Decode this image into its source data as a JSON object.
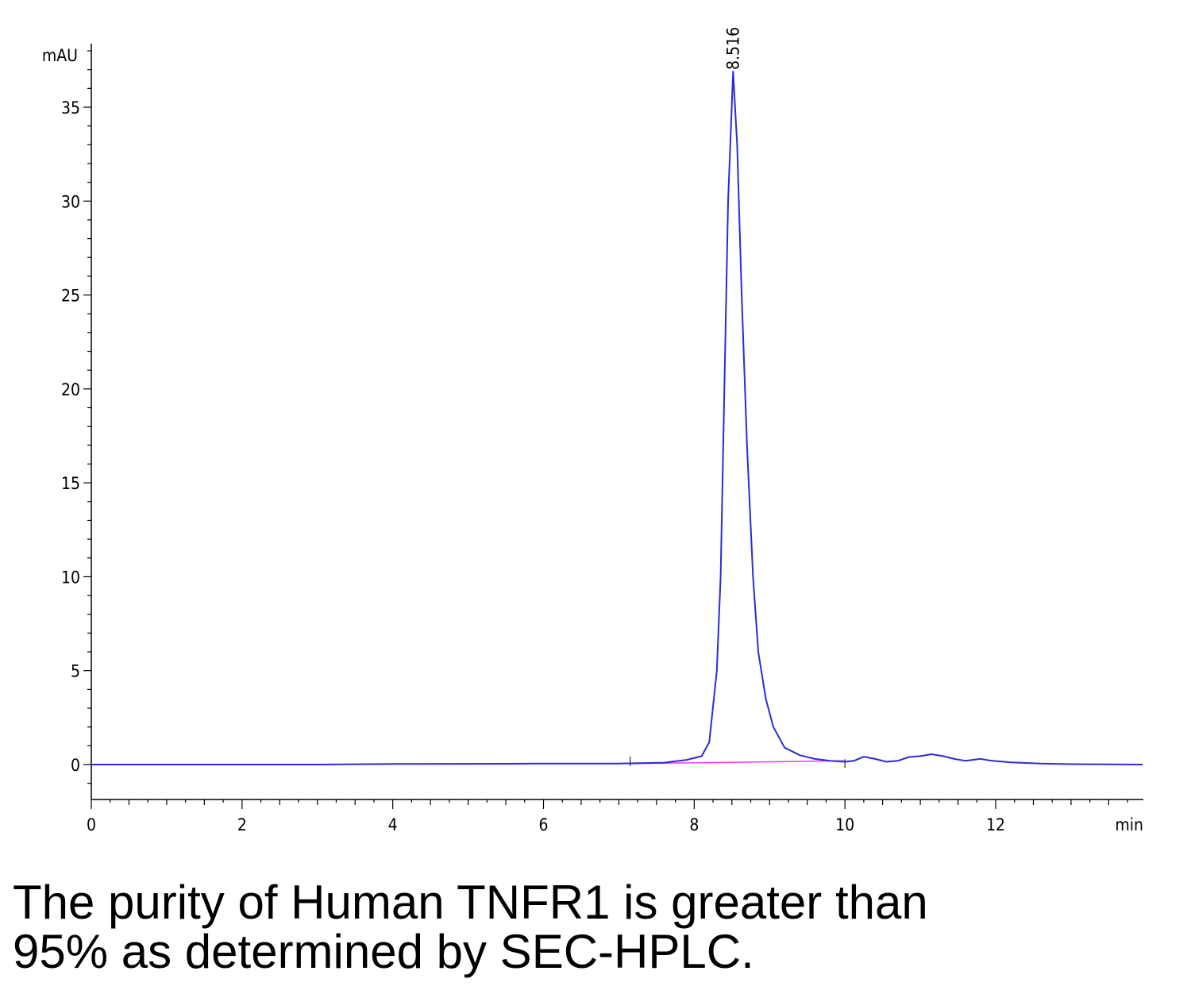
{
  "caption": {
    "line1": "The purity of Human TNFR1 is greater than",
    "line2": "95% as determined by SEC-HPLC."
  },
  "chart_data": {
    "type": "line",
    "title": "",
    "xlabel": "min",
    "ylabel": "mAU",
    "xlim": [
      0,
      13.95
    ],
    "ylim": [
      -1.8,
      38.5
    ],
    "x_ticks": [
      0,
      2,
      4,
      6,
      8,
      10,
      12
    ],
    "y_ticks": [
      0,
      5,
      10,
      15,
      20,
      25,
      30,
      35
    ],
    "grid": false,
    "colors": {
      "trace": "#2b2bd6",
      "baseline": "#ff33ff",
      "axis": "#000000"
    },
    "series": [
      {
        "points": [
          [
            0,
            0.0
          ],
          [
            1,
            0.0
          ],
          [
            2,
            0.0
          ],
          [
            3,
            0.0
          ],
          [
            4,
            0.03
          ],
          [
            5,
            0.04
          ],
          [
            6,
            0.05
          ],
          [
            7,
            0.05
          ],
          [
            7.6,
            0.1
          ],
          [
            7.9,
            0.25
          ],
          [
            8.1,
            0.45
          ],
          [
            8.2,
            1.2
          ],
          [
            8.3,
            5.0
          ],
          [
            8.35,
            10.0
          ],
          [
            8.4,
            20.0
          ],
          [
            8.45,
            30.0
          ],
          [
            8.516,
            36.9
          ],
          [
            8.57,
            33.0
          ],
          [
            8.63,
            25.0
          ],
          [
            8.7,
            17.0
          ],
          [
            8.78,
            10.0
          ],
          [
            8.85,
            6.0
          ],
          [
            8.95,
            3.5
          ],
          [
            9.05,
            2.0
          ],
          [
            9.2,
            0.9
          ],
          [
            9.4,
            0.5
          ],
          [
            9.6,
            0.3
          ],
          [
            9.8,
            0.2
          ],
          [
            10.0,
            0.15
          ],
          [
            10.12,
            0.2
          ],
          [
            10.25,
            0.42
          ],
          [
            10.4,
            0.3
          ],
          [
            10.55,
            0.15
          ],
          [
            10.7,
            0.2
          ],
          [
            10.85,
            0.4
          ],
          [
            11.0,
            0.45
          ],
          [
            11.15,
            0.55
          ],
          [
            11.3,
            0.45
          ],
          [
            11.45,
            0.3
          ],
          [
            11.6,
            0.2
          ],
          [
            11.8,
            0.3
          ],
          [
            11.95,
            0.2
          ],
          [
            12.2,
            0.12
          ],
          [
            12.6,
            0.05
          ],
          [
            13.0,
            0.02
          ],
          [
            13.95,
            0.0
          ]
        ]
      }
    ],
    "baseline": {
      "x": [
        7.15,
        10.0
      ],
      "y": [
        0.05,
        0.2
      ]
    },
    "peak_markers": [
      {
        "x": 8.516,
        "label": "8.516"
      }
    ]
  }
}
